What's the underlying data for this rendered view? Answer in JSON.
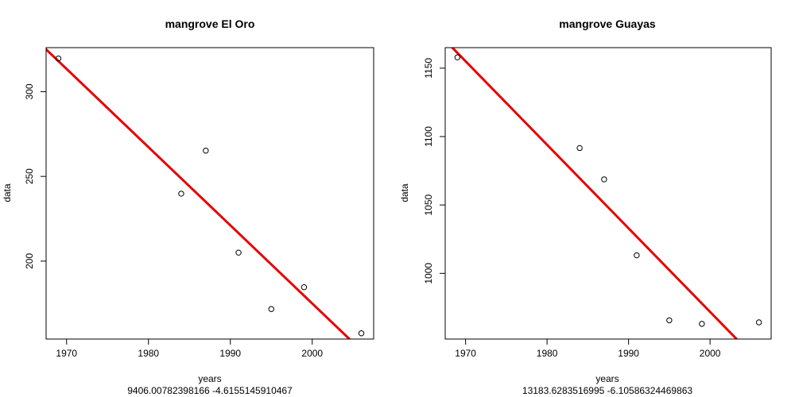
{
  "chart_data": [
    {
      "type": "scatter",
      "title": "mangrove El Oro",
      "xlabel": "years",
      "ylabel": "data",
      "subtitle": "9406.00782398166 -4.6155145910467",
      "xlim": [
        1967.5,
        2007.5
      ],
      "ylim": [
        154,
        326
      ],
      "xticks": [
        1970,
        1980,
        1990,
        2000
      ],
      "yticks": [
        200,
        250,
        300
      ],
      "points": [
        {
          "x": 1969,
          "y": 319.6
        },
        {
          "x": 1984,
          "y": 239.8
        },
        {
          "x": 1987,
          "y": 265.2
        },
        {
          "x": 1991,
          "y": 205.0
        },
        {
          "x": 1995,
          "y": 171.7
        },
        {
          "x": 1999,
          "y": 184.6
        },
        {
          "x": 2006,
          "y": 157.4
        }
      ],
      "fit": {
        "intercept": 9406.00782398166,
        "slope": -4.6155145910467,
        "color": "#e60000"
      }
    },
    {
      "type": "scatter",
      "title": "mangrove Guayas",
      "xlabel": "years",
      "ylabel": "data",
      "subtitle": "13183.6283516995 -6.10586324469863",
      "xlim": [
        1967.5,
        2007.5
      ],
      "ylim": [
        952,
        1165
      ],
      "xticks": [
        1970,
        1980,
        1990,
        2000
      ],
      "yticks": [
        1000,
        1050,
        1100,
        1150
      ],
      "points": [
        {
          "x": 1969,
          "y": 1157.9
        },
        {
          "x": 1984,
          "y": 1091.6
        },
        {
          "x": 1987,
          "y": 1068.7
        },
        {
          "x": 1991,
          "y": 1013.2
        },
        {
          "x": 1995,
          "y": 965.7
        },
        {
          "x": 1999,
          "y": 963.1
        },
        {
          "x": 2006,
          "y": 964.2
        }
      ],
      "fit": {
        "intercept": 13183.6283516995,
        "slope": -6.10586324469863,
        "color": "#e60000"
      }
    }
  ]
}
